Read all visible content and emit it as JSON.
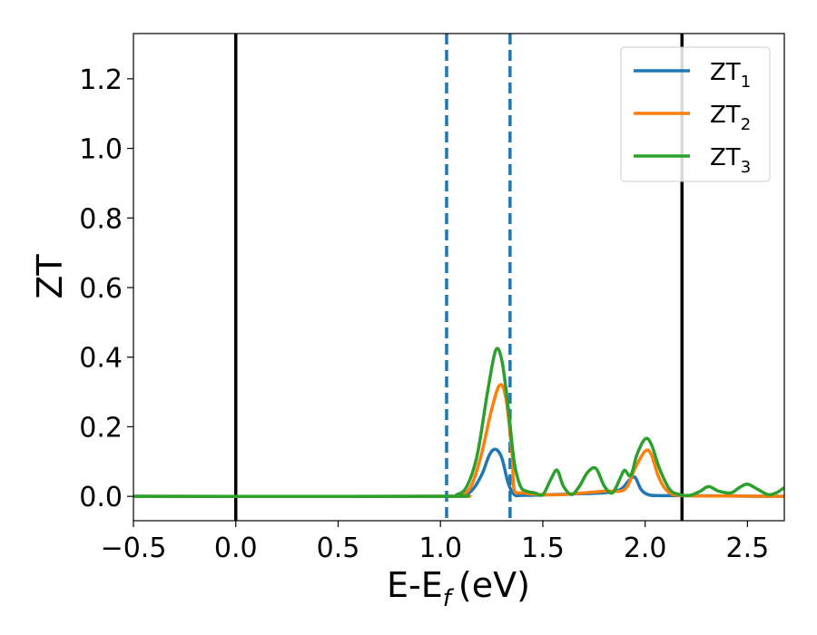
{
  "chart_data": {
    "type": "line",
    "xlabel": "E-E",
    "xlabel_sub": "f",
    "xlabel_unit": "(eV)",
    "ylabel": "ZT",
    "xlim": [
      -0.5,
      2.68
    ],
    "ylim": [
      -0.07,
      1.33
    ],
    "xticks": [
      -0.5,
      0.0,
      0.5,
      1.0,
      1.5,
      2.0,
      2.5
    ],
    "xtick_labels": [
      "−0.5",
      "0.0",
      "0.5",
      "1.0",
      "1.5",
      "2.0",
      "2.5"
    ],
    "yticks": [
      0.0,
      0.2,
      0.4,
      0.6,
      0.8,
      1.0,
      1.2
    ],
    "ytick_labels": [
      "0.0",
      "0.2",
      "0.4",
      "0.6",
      "0.8",
      "1.0",
      "1.2"
    ],
    "grid": false,
    "legend_position": "top-right",
    "vlines": [
      {
        "x": 0.0,
        "style": "solid",
        "color": "#000000"
      },
      {
        "x": 2.18,
        "style": "solid",
        "color": "#000000"
      },
      {
        "x": 1.03,
        "style": "dashed",
        "color": "#1f77b4"
      },
      {
        "x": 1.34,
        "style": "dashed",
        "color": "#1f77b4"
      }
    ],
    "series": [
      {
        "name": "ZT",
        "sub": "1",
        "color": "#1f77b4",
        "x": [
          -0.5,
          1.0,
          1.1,
          1.15,
          1.2,
          1.24,
          1.27,
          1.3,
          1.33,
          1.36,
          1.4,
          1.5,
          1.6,
          1.7,
          1.8,
          1.88,
          1.92,
          1.95,
          1.98,
          2.02,
          2.1,
          2.2,
          2.4,
          2.68
        ],
        "y": [
          0.0,
          0.0,
          0.003,
          0.015,
          0.06,
          0.12,
          0.135,
          0.11,
          0.04,
          0.005,
          0.003,
          0.004,
          0.006,
          0.008,
          0.01,
          0.02,
          0.045,
          0.055,
          0.02,
          0.004,
          0.002,
          0.002,
          0.001,
          0.0
        ]
      },
      {
        "name": "ZT",
        "sub": "2",
        "color": "#ff7f0e",
        "x": [
          -0.5,
          1.0,
          1.1,
          1.15,
          1.2,
          1.25,
          1.29,
          1.32,
          1.35,
          1.36,
          1.4,
          1.5,
          1.6,
          1.7,
          1.8,
          1.9,
          1.95,
          2.0,
          2.03,
          2.07,
          2.12,
          2.2,
          2.4,
          2.68
        ],
        "y": [
          0.0,
          0.0,
          0.005,
          0.03,
          0.12,
          0.25,
          0.32,
          0.28,
          0.12,
          0.02,
          0.01,
          0.005,
          0.005,
          0.01,
          0.015,
          0.02,
          0.08,
          0.13,
          0.12,
          0.05,
          0.01,
          0.002,
          0.001,
          0.0
        ]
      },
      {
        "name": "ZT",
        "sub": "3",
        "color": "#2ca02c",
        "x": [
          -0.5,
          1.0,
          1.08,
          1.13,
          1.18,
          1.23,
          1.27,
          1.3,
          1.33,
          1.36,
          1.39,
          1.42,
          1.46,
          1.5,
          1.54,
          1.57,
          1.6,
          1.64,
          1.68,
          1.72,
          1.76,
          1.8,
          1.84,
          1.88,
          1.9,
          1.93,
          1.96,
          2.0,
          2.03,
          2.07,
          2.12,
          2.17,
          2.22,
          2.27,
          2.31,
          2.36,
          2.42,
          2.46,
          2.5,
          2.55,
          2.6,
          2.64,
          2.68
        ],
        "y": [
          0.0,
          0.0,
          0.005,
          0.03,
          0.12,
          0.3,
          0.42,
          0.39,
          0.26,
          0.1,
          0.03,
          0.015,
          0.01,
          0.005,
          0.05,
          0.075,
          0.03,
          0.005,
          0.03,
          0.07,
          0.08,
          0.03,
          0.01,
          0.055,
          0.075,
          0.06,
          0.12,
          0.165,
          0.15,
          0.08,
          0.02,
          0.005,
          0.003,
          0.015,
          0.028,
          0.015,
          0.01,
          0.025,
          0.035,
          0.02,
          0.005,
          0.01,
          0.025
        ]
      }
    ]
  }
}
